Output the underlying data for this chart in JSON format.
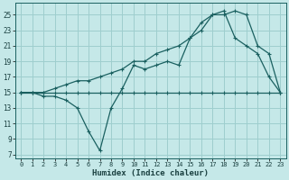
{
  "xlabel": "Humidex (Indice chaleur)",
  "ylabel": "",
  "bg_color": "#c5e8e8",
  "grid_color": "#9ecece",
  "line_color": "#1a6060",
  "xlim": [
    -0.5,
    23.5
  ],
  "ylim": [
    6.5,
    26.5
  ],
  "xticks": [
    0,
    1,
    2,
    3,
    4,
    5,
    6,
    7,
    8,
    9,
    10,
    11,
    12,
    13,
    14,
    15,
    16,
    17,
    18,
    19,
    20,
    21,
    22,
    23
  ],
  "yticks": [
    7,
    9,
    11,
    13,
    15,
    17,
    19,
    21,
    23,
    25
  ],
  "line1_x": [
    0,
    1,
    2,
    3,
    4,
    5,
    6,
    7,
    8,
    9,
    10,
    11,
    12,
    13,
    14,
    15,
    16,
    17,
    18,
    19,
    20,
    21,
    22,
    23
  ],
  "line1_y": [
    15,
    15,
    15,
    15,
    15,
    15,
    15,
    15,
    15,
    15,
    15,
    15,
    15,
    15,
    15,
    15,
    15,
    15,
    15,
    15,
    15,
    15,
    15,
    15
  ],
  "line2_x": [
    0,
    1,
    2,
    3,
    4,
    5,
    6,
    7,
    8,
    9,
    10,
    11,
    12,
    13,
    14,
    15,
    16,
    17,
    18,
    19,
    20,
    21,
    22,
    23
  ],
  "line2_y": [
    15,
    15,
    14.5,
    14.5,
    14,
    13,
    10,
    7.5,
    13,
    15.5,
    18.5,
    18,
    18.5,
    19,
    18.5,
    22,
    24,
    25,
    25,
    25.5,
    25,
    21,
    20,
    15
  ],
  "line3_x": [
    0,
    1,
    2,
    3,
    4,
    5,
    6,
    7,
    8,
    9,
    10,
    11,
    12,
    13,
    14,
    15,
    16,
    17,
    18,
    19,
    20,
    21,
    22,
    23
  ],
  "line3_y": [
    15,
    15,
    15,
    15.5,
    16,
    16.5,
    16.5,
    17,
    17.5,
    18,
    19,
    19,
    20,
    20.5,
    21,
    22,
    23,
    25,
    25.5,
    22,
    21,
    20,
    17,
    15
  ]
}
